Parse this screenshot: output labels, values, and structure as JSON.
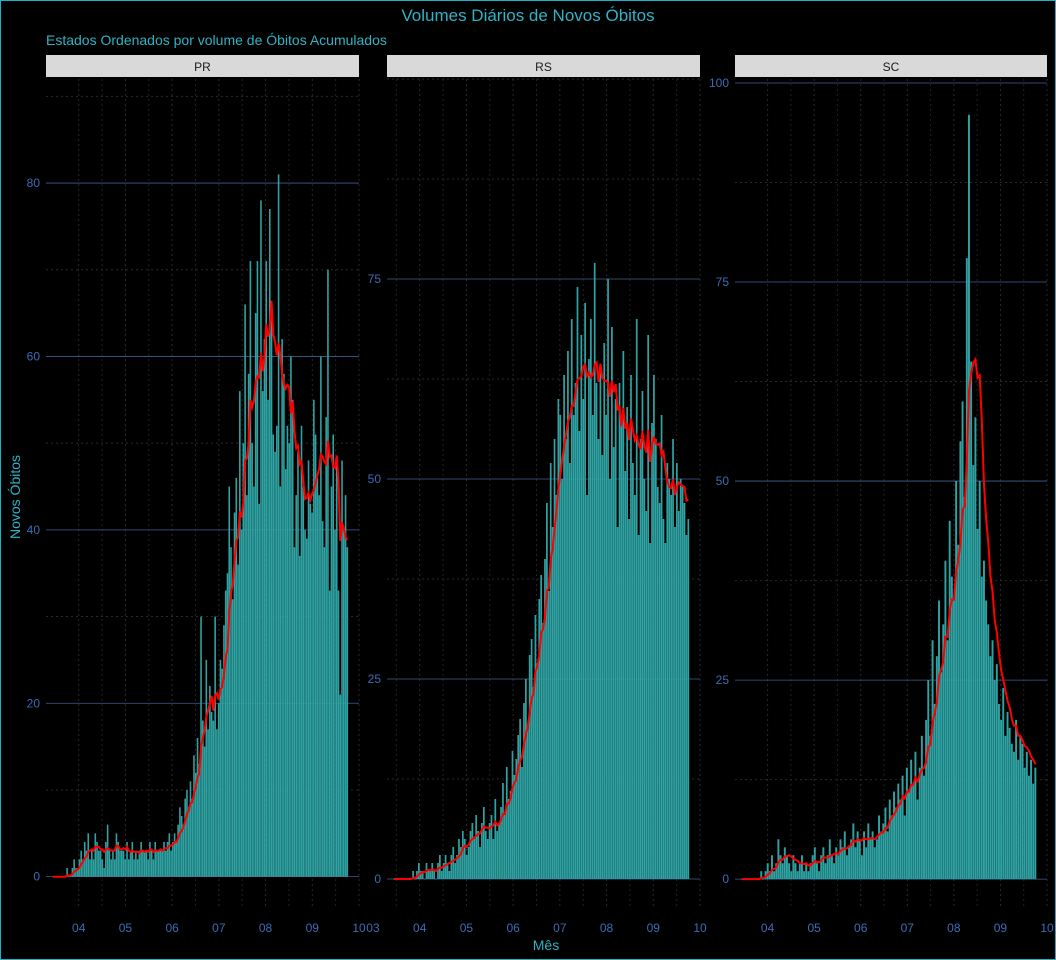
{
  "title": "Volumes Diários de Novos Óbitos",
  "subtitle": "Estados Ordenados por volume de Óbitos Acumulados",
  "colors": {
    "bars": "#2fa3a3",
    "line": "#ff0000",
    "accent": "#2fb3c6",
    "ticks": "#3d6cb3"
  },
  "chart_data": [
    {
      "type": "bar",
      "panel": "PR",
      "xlabel": "Mês",
      "ylabel": "Novos Óbitos",
      "xlim": [
        3.3,
        10
      ],
      "ylim": [
        -3.5,
        92
      ],
      "x_ticks": [
        "04",
        "05",
        "06",
        "07",
        "08",
        "09",
        "10"
      ],
      "y_ticks": [
        0,
        20,
        40,
        60,
        80
      ],
      "grid": true,
      "moving_average_line": true,
      "series": [
        {
          "values": [
            0,
            0,
            0,
            0,
            0,
            0,
            0,
            0,
            1,
            0,
            0,
            1,
            2,
            1,
            1,
            2,
            3,
            2,
            4,
            3,
            5,
            2,
            3,
            2,
            5,
            4,
            3,
            3,
            2,
            1,
            4,
            6,
            3,
            2,
            3,
            2,
            5,
            4,
            3,
            3,
            3,
            2,
            4,
            2,
            3,
            4,
            2,
            3,
            2,
            3,
            4,
            3,
            3,
            3,
            2,
            4,
            3,
            2,
            4,
            3,
            3,
            3,
            3,
            4,
            3,
            4,
            5,
            3,
            4,
            5,
            4,
            6,
            8,
            7,
            6,
            9,
            10,
            8,
            11,
            9,
            14,
            12,
            16,
            13,
            30,
            18,
            15,
            25,
            17,
            22,
            19,
            18,
            30,
            17,
            20,
            25,
            24,
            29,
            33,
            35,
            45,
            38,
            32,
            42,
            46,
            36,
            56,
            40,
            50,
            66,
            44,
            58,
            71,
            50,
            45,
            65,
            71,
            43,
            78,
            56,
            62,
            71,
            55,
            77,
            66,
            51,
            49,
            52,
            81,
            45,
            62,
            58,
            47,
            52,
            50,
            60,
            55,
            38,
            44,
            49,
            37,
            52,
            45,
            40,
            39,
            48,
            43,
            42,
            55,
            51,
            46,
            44,
            60,
            41,
            38,
            53,
            70,
            33,
            45,
            51,
            40,
            48,
            33,
            21,
            48,
            40,
            44,
            38
          ]
        }
      ]
    },
    {
      "type": "bar",
      "panel": "RS",
      "xlabel": "Mês",
      "ylabel": "Novos Óbitos",
      "xlim": [
        3.3,
        10
      ],
      "ylim": [
        -3.5,
        100
      ],
      "x_ticks": [
        "03",
        "04",
        "05",
        "06",
        "07",
        "08",
        "09",
        "10"
      ],
      "y_ticks": [
        0,
        25,
        50,
        75
      ],
      "grid": true,
      "moving_average_line": true,
      "series": [
        {
          "values": [
            0,
            0,
            0,
            0,
            0,
            0,
            0,
            0,
            0,
            0,
            1,
            0,
            1,
            2,
            1,
            1,
            0,
            2,
            1,
            1,
            2,
            1,
            0,
            2,
            3,
            1,
            2,
            3,
            2,
            1,
            3,
            4,
            2,
            3,
            5,
            4,
            6,
            5,
            3,
            4,
            6,
            7,
            5,
            8,
            6,
            4,
            7,
            9,
            6,
            5,
            7,
            8,
            5,
            10,
            6,
            7,
            9,
            12,
            8,
            14,
            10,
            11,
            16,
            13,
            15,
            18,
            20,
            14,
            22,
            25,
            19,
            28,
            30,
            24,
            33,
            27,
            35,
            38,
            32,
            40,
            47,
            36,
            52,
            44,
            55,
            48,
            60,
            58,
            50,
            63,
            55,
            66,
            52,
            70,
            58,
            62,
            74,
            56,
            68,
            60,
            72,
            48,
            65,
            70,
            58,
            77,
            62,
            55,
            64,
            53,
            67,
            58,
            75,
            50,
            69,
            54,
            60,
            44,
            62,
            57,
            66,
            51,
            59,
            45,
            63,
            52,
            48,
            70,
            43,
            55,
            61,
            50,
            46,
            68,
            42,
            57,
            63,
            55,
            49,
            47,
            58,
            45,
            42,
            52,
            50,
            48,
            55,
            44,
            52,
            46,
            50,
            49,
            47,
            43,
            45
          ]
        }
      ]
    },
    {
      "type": "bar",
      "panel": "SC",
      "xlabel": "Mês",
      "ylabel": "Novos Óbitos",
      "xlim": [
        3.3,
        10
      ],
      "ylim": [
        -3.5,
        100.5
      ],
      "x_ticks": [
        "04",
        "05",
        "06",
        "07",
        "08",
        "09",
        "10"
      ],
      "y_ticks": [
        0,
        25,
        50,
        75,
        100
      ],
      "grid": true,
      "moving_average_line": true,
      "series": [
        {
          "values": [
            0,
            0,
            0,
            0,
            0,
            0,
            0,
            0,
            0,
            1,
            0,
            1,
            2,
            1,
            3,
            1,
            2,
            5,
            3,
            2,
            4,
            3,
            2,
            1,
            3,
            2,
            1,
            2,
            3,
            1,
            2,
            1,
            2,
            3,
            4,
            2,
            1,
            3,
            4,
            2,
            3,
            5,
            3,
            2,
            4,
            3,
            5,
            4,
            6,
            3,
            4,
            5,
            7,
            4,
            6,
            5,
            3,
            6,
            4,
            7,
            5,
            6,
            4,
            5,
            8,
            6,
            7,
            9,
            6,
            10,
            8,
            11,
            9,
            12,
            10,
            13,
            8,
            14,
            11,
            15,
            12,
            16,
            10,
            14,
            18,
            13,
            20,
            25,
            18,
            30,
            22,
            28,
            35,
            26,
            32,
            40,
            30,
            45,
            38,
            35,
            50,
            42,
            55,
            60,
            48,
            78,
            96,
            65,
            52,
            58,
            44,
            50,
            38,
            40,
            35,
            32,
            28,
            30,
            25,
            27,
            22,
            20,
            24,
            18,
            21,
            19,
            17,
            16,
            20,
            15,
            18,
            17,
            14,
            16,
            13,
            15,
            12,
            14
          ]
        }
      ]
    }
  ],
  "ma_window": 7
}
